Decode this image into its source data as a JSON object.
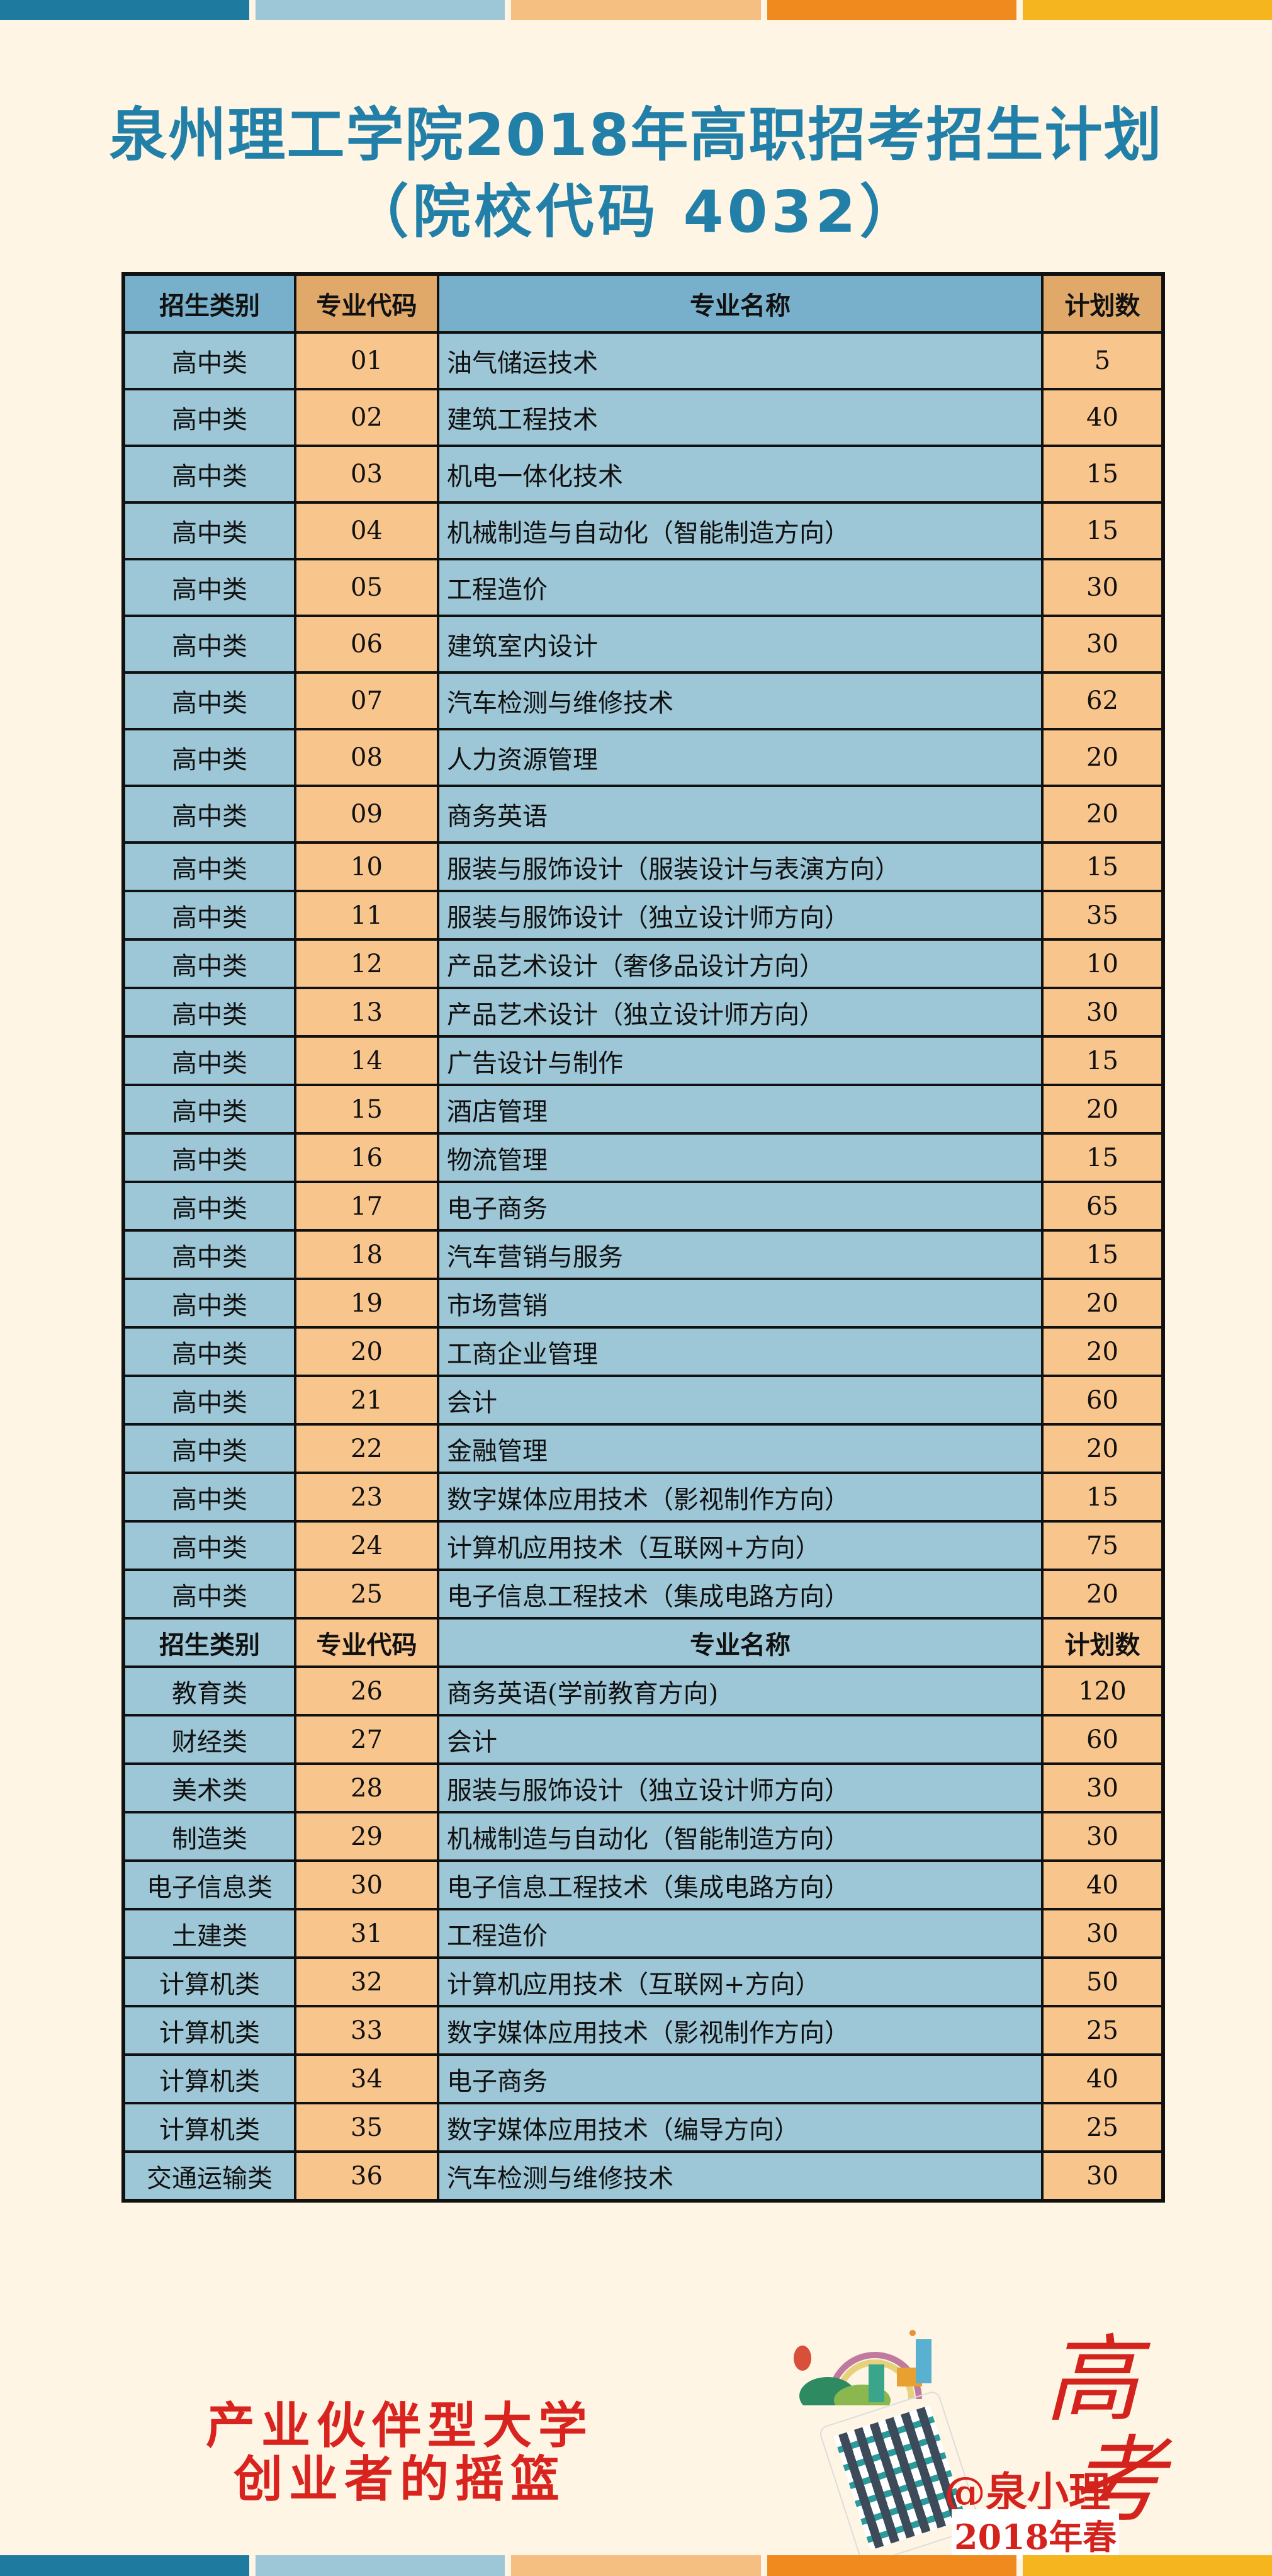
{
  "colors": {
    "bars": [
      "#1f7aa0",
      "#9dc6d6",
      "#f6bf82",
      "#f08a1e",
      "#f4b51e"
    ],
    "title": "#2280a8",
    "blue_cell": "#9dc6d6",
    "orange_cell": "#f8c58c",
    "header_blue": "#78b0cc",
    "header_orange": "#e0a96a",
    "slogan": "#d9231f"
  },
  "title": {
    "line1": "泉州理工学院2018年高职招考招生计划",
    "line2": "（院校代码 4032）"
  },
  "table": {
    "headers": [
      "招生类别",
      "专业代码",
      "专业名称",
      "计划数"
    ],
    "section1": [
      [
        "高中类",
        "01",
        "油气储运技术",
        "5"
      ],
      [
        "高中类",
        "02",
        "建筑工程技术",
        "40"
      ],
      [
        "高中类",
        "03",
        "机电一体化技术",
        "15"
      ],
      [
        "高中类",
        "04",
        "机械制造与自动化（智能制造方向）",
        "15"
      ],
      [
        "高中类",
        "05",
        "工程造价",
        "30"
      ],
      [
        "高中类",
        "06",
        "建筑室内设计",
        "30"
      ],
      [
        "高中类",
        "07",
        "汽车检测与维修技术",
        "62"
      ],
      [
        "高中类",
        "08",
        "人力资源管理",
        "20"
      ],
      [
        "高中类",
        "09",
        "商务英语",
        "20"
      ],
      [
        "高中类",
        "10",
        "服装与服饰设计（服装设计与表演方向）",
        "15"
      ],
      [
        "高中类",
        "11",
        "服装与服饰设计（独立设计师方向）",
        "35"
      ],
      [
        "高中类",
        "12",
        "产品艺术设计（奢侈品设计方向）",
        "10"
      ],
      [
        "高中类",
        "13",
        "产品艺术设计（独立设计师方向）",
        "30"
      ],
      [
        "高中类",
        "14",
        "广告设计与制作",
        "15"
      ],
      [
        "高中类",
        "15",
        "酒店管理",
        "20"
      ],
      [
        "高中类",
        "16",
        "物流管理",
        "15"
      ],
      [
        "高中类",
        "17",
        "电子商务",
        "65"
      ],
      [
        "高中类",
        "18",
        "汽车营销与服务",
        "15"
      ],
      [
        "高中类",
        "19",
        "市场营销",
        "20"
      ],
      [
        "高中类",
        "20",
        "工商企业管理",
        "20"
      ],
      [
        "高中类",
        "21",
        "会计",
        "60"
      ],
      [
        "高中类",
        "22",
        "金融管理",
        "20"
      ],
      [
        "高中类",
        "23",
        "数字媒体应用技术（影视制作方向）",
        "15"
      ],
      [
        "高中类",
        "24",
        "计算机应用技术（互联网+方向）",
        "75"
      ],
      [
        "高中类",
        "25",
        "电子信息工程技术（集成电路方向）",
        "20"
      ]
    ],
    "section2": [
      [
        "教育类",
        "26",
        "商务英语(学前教育方向)",
        "120"
      ],
      [
        "财经类",
        "27",
        "会计",
        "60"
      ],
      [
        "美术类",
        "28",
        "服装与服饰设计（独立设计师方向）",
        "30"
      ],
      [
        "制造类",
        "29",
        "机械制造与自动化（智能制造方向）",
        "30"
      ],
      [
        "电子信息类",
        "30",
        "电子信息工程技术（集成电路方向）",
        "40"
      ],
      [
        "土建类",
        "31",
        "工程造价",
        "30"
      ],
      [
        "计算机类",
        "32",
        "计算机应用技术（互联网+方向）",
        "50"
      ],
      [
        "计算机类",
        "33",
        "数字媒体应用技术（影视制作方向）",
        "25"
      ],
      [
        "计算机类",
        "34",
        "电子商务",
        "40"
      ],
      [
        "计算机类",
        "35",
        "数字媒体应用技术（编导方向）",
        "25"
      ],
      [
        "交通运输类",
        "36",
        "汽车检测与维修技术",
        "30"
      ]
    ]
  },
  "slogan": {
    "line1": "产业伙伴型大学",
    "line2": "创业者的摇篮"
  },
  "badge": {
    "gao": "高",
    "kao": "考",
    "handle": "@泉小理",
    "season": "2018年春",
    "qr_icon": "qr-code-icon"
  }
}
